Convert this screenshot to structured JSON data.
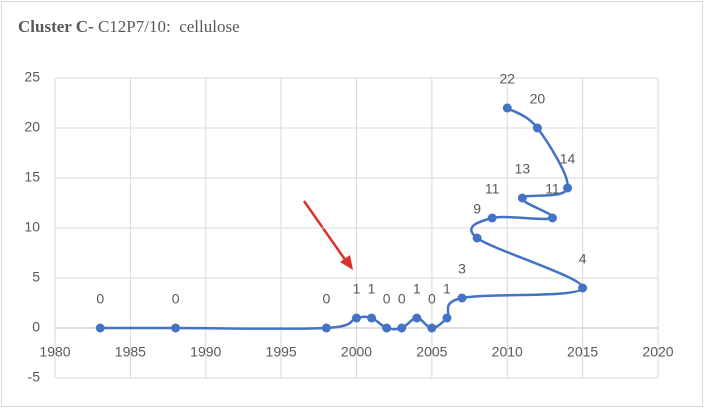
{
  "chart_data": {
    "type": "scatter-smooth",
    "title": {
      "bold": "Cluster C-",
      "text": "C12P7/10:  cellulose"
    },
    "series": [
      {
        "name": "cellulose",
        "color": "#4472c4",
        "x": [
          1983,
          1988,
          1998,
          2000,
          2001,
          2002,
          2003,
          2004,
          2005,
          2006,
          2007,
          2015,
          2008,
          2009,
          2013,
          2011,
          2014,
          2012,
          2010
        ],
        "values": [
          0,
          0,
          0,
          1,
          1,
          0,
          0,
          1,
          0,
          1,
          3,
          4,
          9,
          11,
          11,
          13,
          14,
          20,
          22
        ]
      }
    ],
    "xlim": [
      1980,
      2020
    ],
    "xticks": [
      1980,
      1985,
      1990,
      1995,
      2000,
      2005,
      2010,
      2015,
      2020
    ],
    "ylim": [
      -5,
      25
    ],
    "yticks": [
      -5,
      0,
      5,
      10,
      15,
      20,
      25
    ],
    "grid": true
  }
}
